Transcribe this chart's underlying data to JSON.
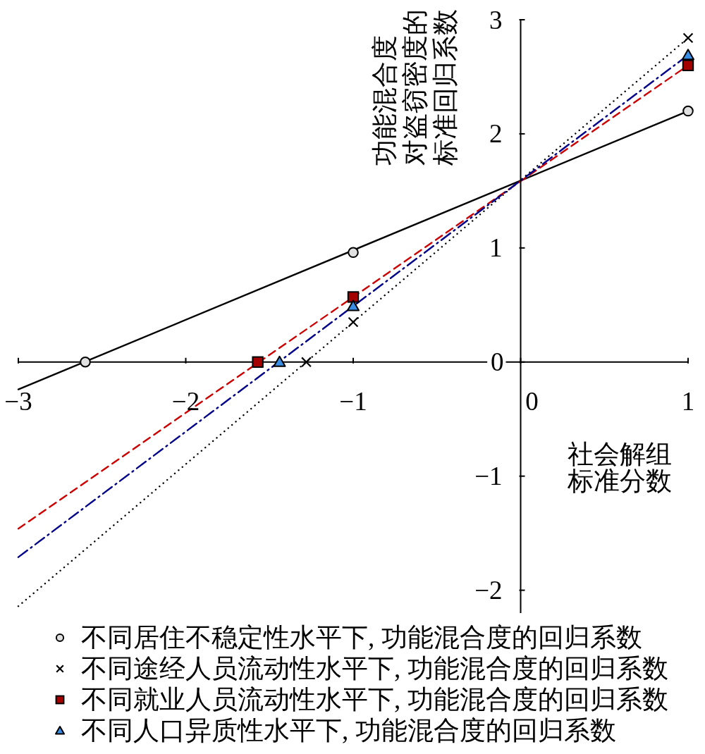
{
  "chart_data": {
    "type": "scatter",
    "xlabel": "社会解组标准分数",
    "ylabel": "功能混合度对盗窃密度的标准回归系数",
    "xlim": [
      -3,
      1
    ],
    "xticks": [
      -3,
      -2,
      -1,
      0,
      1
    ],
    "ylim": [
      -2.2,
      3
    ],
    "yticks": [
      -2,
      -1,
      0,
      1,
      2,
      3
    ],
    "legend": "bottom",
    "series": [
      {
        "type": "line",
        "color": "#000000",
        "line_style": "solid",
        "x": [
          -3,
          1
        ],
        "values": [
          -0.24,
          2.2
        ]
      },
      {
        "type": "line",
        "color": "#000000",
        "line_style": "dotted",
        "x": [
          -3,
          1
        ],
        "values": [
          -2.14,
          2.84
        ]
      },
      {
        "type": "line",
        "color": "#cc0000",
        "line_style": "dashed",
        "x": [
          -3,
          1
        ],
        "values": [
          -1.46,
          2.6
        ]
      },
      {
        "type": "line",
        "color": "#00008b",
        "line_style": "dashdot",
        "x": [
          -3,
          1
        ],
        "values": [
          -1.71,
          2.69
        ]
      },
      {
        "name": "不同居住不稳定性水平下, 功能混合度的回归系数",
        "marker": "circle",
        "color": "#e0e0e0",
        "x": [
          -2.6,
          -1,
          1
        ],
        "values": [
          0,
          0.96,
          2.2
        ]
      },
      {
        "name": "不同途经人员流动性水平下, 功能混合度的回归系数",
        "marker": "cross",
        "color": "#000000",
        "x": [
          -1.28,
          -1,
          1
        ],
        "values": [
          0,
          0.35,
          2.84
        ]
      },
      {
        "name": "不同就业人员流动性水平下, 功能混合度的回归系数",
        "marker": "square",
        "color": "#a50000",
        "x": [
          -1.57,
          -1,
          1
        ],
        "values": [
          0,
          0.57,
          2.6
        ]
      },
      {
        "name": "不同人口异质性水平下, 功能混合度的回归系数",
        "marker": "triangle",
        "color": "#3a8ee6",
        "x": [
          -1.44,
          -1,
          1
        ],
        "values": [
          0,
          0.49,
          2.69
        ]
      }
    ]
  }
}
